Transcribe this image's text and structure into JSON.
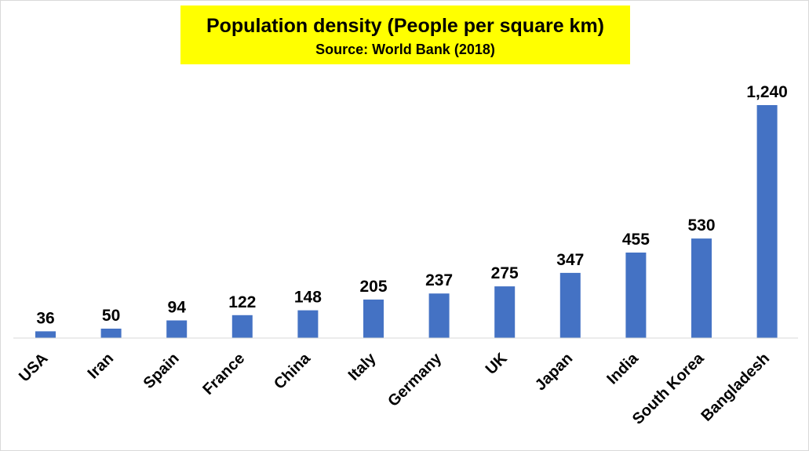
{
  "chart_data": {
    "type": "bar",
    "title": "Population density (People per square km)",
    "subtitle": "Source: World Bank (2018)",
    "categories": [
      "USA",
      "Iran",
      "Spain",
      "France",
      "China",
      "Italy",
      "Germany",
      "UK",
      "Japan",
      "India",
      "South Korea",
      "Bangladesh"
    ],
    "values": [
      36,
      50,
      94,
      122,
      148,
      205,
      237,
      275,
      347,
      455,
      530,
      1240
    ],
    "value_labels": [
      "36",
      "50",
      "94",
      "122",
      "148",
      "205",
      "237",
      "275",
      "347",
      "455",
      "530",
      "1,240"
    ],
    "xlabel": "",
    "ylabel": "",
    "ylim": [
      0,
      1240
    ],
    "grid": false,
    "legend": "none",
    "bar_color": "#4472c4",
    "title_background": "#ffff00"
  }
}
